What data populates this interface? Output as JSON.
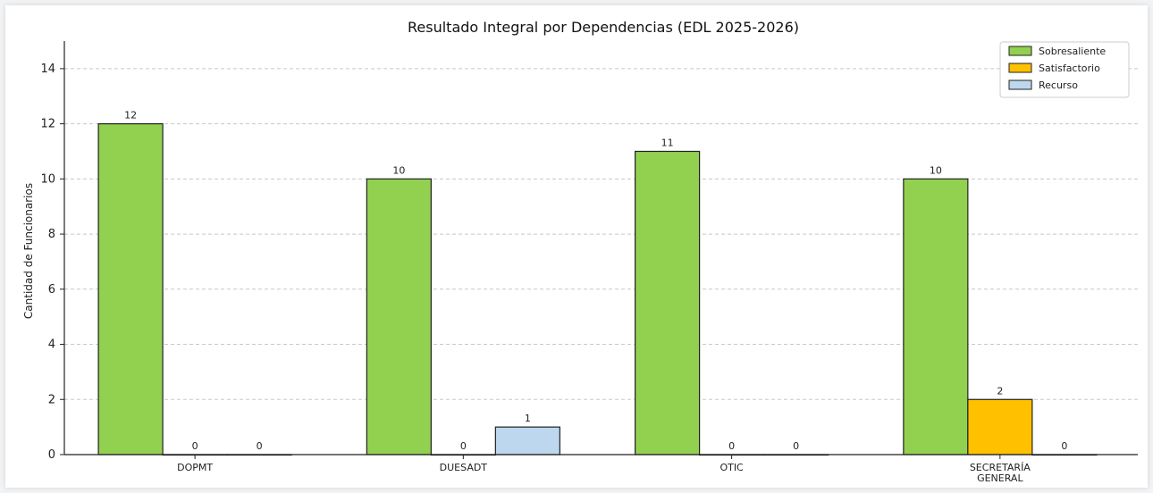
{
  "chart_data": {
    "type": "bar",
    "title": "Resultado Integral por Dependencias (EDL 2025-2026)",
    "xlabel": "",
    "ylabel": "Cantidad de Funcionarios",
    "categories": [
      "DOPMT",
      "DUESADT",
      "OTIC",
      "SECRETARÍA\nGENERAL"
    ],
    "series": [
      {
        "name": "Sobresaliente",
        "values": [
          12,
          10,
          11,
          10
        ],
        "color": "#92d050"
      },
      {
        "name": "Satisfactorio",
        "values": [
          0,
          0,
          0,
          2
        ],
        "color": "#ffc000"
      },
      {
        "name": "Recurso",
        "values": [
          0,
          1,
          0,
          0
        ],
        "color": "#bdd7ee"
      }
    ],
    "ylim": [
      0,
      15
    ],
    "yticks": [
      0,
      2,
      4,
      6,
      8,
      10,
      12,
      14
    ],
    "grid": true,
    "legend": "top-right"
  }
}
